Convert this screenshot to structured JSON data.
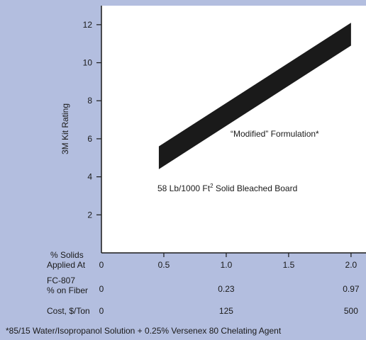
{
  "colors": {
    "page_background": "#b3bedf",
    "plot_background": "#ffffff",
    "band_fill": "#1a1a1a"
  },
  "rows": {
    "solids": {
      "label_line1": "% Solids",
      "label_line2": "Applied At"
    },
    "fc807": {
      "label_line1": "FC-807",
      "label_line2": "% on Fiber"
    },
    "cost": {
      "label": "Cost, $/Ton"
    }
  },
  "footnote": "*85/15 Water/Isopropanol Solution + 0.25% Versenex 80 Chelating Agent",
  "chart_data": {
    "type": "area",
    "ylabel": "3M Kit Rating",
    "ylim": [
      0,
      13
    ],
    "xlim": [
      0,
      2.12
    ],
    "grid": false,
    "y_ticks": [
      2,
      4,
      6,
      8,
      10,
      12
    ],
    "x_ticks": [
      {
        "value": 0,
        "solids": "0",
        "fc807": "0",
        "cost": "0"
      },
      {
        "value": 0.5,
        "solids": "0.5",
        "fc807": "",
        "cost": ""
      },
      {
        "value": 1.0,
        "solids": "1.0",
        "fc807": "0.23",
        "cost": "125"
      },
      {
        "value": 1.5,
        "solids": "1.5",
        "fc807": "",
        "cost": ""
      },
      {
        "value": 2.0,
        "solids": "2.0",
        "fc807": "0.97",
        "cost": "500"
      }
    ],
    "series": [
      {
        "x": [
          0.46,
          2.0
        ],
        "lower": [
          4.4,
          10.9
        ],
        "upper": [
          5.6,
          12.1
        ]
      }
    ],
    "annotations": {
      "formulation": "“Modified” Formulation*",
      "board_prefix": "58 Lb/1000 Ft",
      "board_sup": "2",
      "board_suffix": " Solid Bleached Board"
    }
  }
}
